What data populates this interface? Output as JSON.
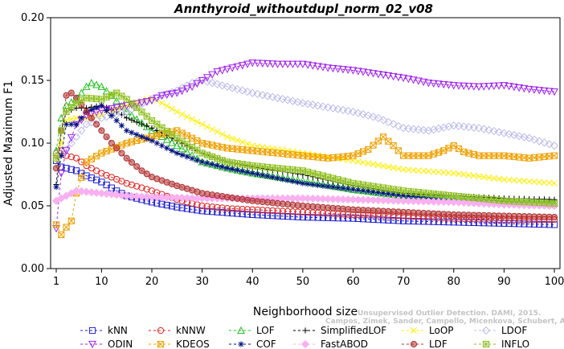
{
  "chart_data": {
    "type": "line",
    "title": "Annthyroid_withoutdupl_norm_02_v08",
    "xlabel": "Neighborhood size",
    "ylabel": "Adjusted Maximum F1",
    "xlim": [
      1,
      100
    ],
    "ylim": [
      0.0,
      0.2
    ],
    "xticks": [
      "1",
      "10",
      "20",
      "30",
      "40",
      "50",
      "60",
      "70",
      "80",
      "90",
      "100"
    ],
    "yticks": [
      "0.00",
      "0.05",
      "0.10",
      "0.15",
      "0.20"
    ],
    "grid": false,
    "legend_position": "bottom",
    "watermark": [
      "Campos, Zimek, Sander, Campello, Micenkova, Schubert, Assent, Houle",
      "Unsupervised Outlier Detection. DAMI, 2015."
    ],
    "series": [
      {
        "name": "kNN",
        "color": "#2020d0",
        "marker": "square",
        "points": [
          [
            1,
            0.086
          ],
          [
            2,
            0.081
          ],
          [
            3,
            0.08
          ],
          [
            5,
            0.078
          ],
          [
            7,
            0.074
          ],
          [
            10,
            0.069
          ],
          [
            13,
            0.062
          ],
          [
            15,
            0.058
          ],
          [
            20,
            0.053
          ],
          [
            25,
            0.049
          ],
          [
            30,
            0.046
          ],
          [
            40,
            0.043
          ],
          [
            50,
            0.041
          ],
          [
            60,
            0.04
          ],
          [
            70,
            0.038
          ],
          [
            80,
            0.037
          ],
          [
            90,
            0.036
          ],
          [
            100,
            0.035
          ]
        ]
      },
      {
        "name": "kNNW",
        "color": "#e02020",
        "marker": "circle",
        "points": [
          [
            1,
            0.092
          ],
          [
            2,
            0.094
          ],
          [
            3,
            0.09
          ],
          [
            5,
            0.088
          ],
          [
            7,
            0.082
          ],
          [
            10,
            0.076
          ],
          [
            15,
            0.068
          ],
          [
            20,
            0.062
          ],
          [
            25,
            0.055
          ],
          [
            30,
            0.05
          ],
          [
            35,
            0.048
          ],
          [
            40,
            0.047
          ],
          [
            50,
            0.045
          ],
          [
            60,
            0.043
          ],
          [
            70,
            0.042
          ],
          [
            80,
            0.04
          ],
          [
            90,
            0.039
          ],
          [
            100,
            0.039
          ]
        ]
      },
      {
        "name": "LOF",
        "color": "#20c020",
        "marker": "triangle-up",
        "points": [
          [
            1,
            0.094
          ],
          [
            2,
            0.12
          ],
          [
            3,
            0.13
          ],
          [
            5,
            0.135
          ],
          [
            7,
            0.145
          ],
          [
            8,
            0.148
          ],
          [
            10,
            0.145
          ],
          [
            12,
            0.138
          ],
          [
            15,
            0.125
          ],
          [
            20,
            0.11
          ],
          [
            25,
            0.098
          ],
          [
            30,
            0.085
          ],
          [
            35,
            0.08
          ],
          [
            40,
            0.076
          ],
          [
            50,
            0.07
          ],
          [
            60,
            0.063
          ],
          [
            70,
            0.058
          ],
          [
            80,
            0.056
          ],
          [
            90,
            0.053
          ],
          [
            100,
            0.052
          ]
        ]
      },
      {
        "name": "SimplifiedLOF",
        "color": "#000000",
        "marker": "plus",
        "points": [
          [
            1,
            0.067
          ],
          [
            2,
            0.11
          ],
          [
            3,
            0.125
          ],
          [
            5,
            0.128
          ],
          [
            7,
            0.128
          ],
          [
            10,
            0.13
          ],
          [
            13,
            0.125
          ],
          [
            15,
            0.12
          ],
          [
            20,
            0.112
          ],
          [
            25,
            0.102
          ],
          [
            30,
            0.092
          ],
          [
            35,
            0.085
          ],
          [
            40,
            0.081
          ],
          [
            50,
            0.075
          ],
          [
            60,
            0.066
          ],
          [
            70,
            0.06
          ],
          [
            80,
            0.058
          ],
          [
            90,
            0.056
          ],
          [
            100,
            0.055
          ]
        ]
      },
      {
        "name": "LoOP",
        "color": "#ffee00",
        "marker": "cross",
        "points": [
          [
            1,
            0.09
          ],
          [
            2,
            0.1
          ],
          [
            3,
            0.118
          ],
          [
            5,
            0.12
          ],
          [
            7,
            0.12
          ],
          [
            10,
            0.122
          ],
          [
            13,
            0.128
          ],
          [
            15,
            0.13
          ],
          [
            20,
            0.136
          ],
          [
            22,
            0.132
          ],
          [
            25,
            0.125
          ],
          [
            30,
            0.115
          ],
          [
            35,
            0.105
          ],
          [
            40,
            0.098
          ],
          [
            50,
            0.092
          ],
          [
            60,
            0.086
          ],
          [
            70,
            0.079
          ],
          [
            80,
            0.076
          ],
          [
            90,
            0.071
          ],
          [
            100,
            0.068
          ]
        ]
      },
      {
        "name": "LDOF",
        "color": "#bcbcec",
        "marker": "diamond",
        "points": [
          [
            1,
            0.09
          ],
          [
            2,
            0.092
          ],
          [
            3,
            0.095
          ],
          [
            5,
            0.105
          ],
          [
            7,
            0.115
          ],
          [
            10,
            0.12
          ],
          [
            15,
            0.125
          ],
          [
            20,
            0.135
          ],
          [
            25,
            0.142
          ],
          [
            28,
            0.148
          ],
          [
            30,
            0.15
          ],
          [
            35,
            0.145
          ],
          [
            40,
            0.14
          ],
          [
            45,
            0.136
          ],
          [
            50,
            0.132
          ],
          [
            60,
            0.125
          ],
          [
            65,
            0.12
          ],
          [
            70,
            0.112
          ],
          [
            75,
            0.11
          ],
          [
            80,
            0.114
          ],
          [
            85,
            0.112
          ],
          [
            90,
            0.108
          ],
          [
            95,
            0.104
          ],
          [
            100,
            0.098
          ]
        ]
      },
      {
        "name": "ODIN",
        "color": "#a020f0",
        "marker": "triangle-down",
        "points": [
          [
            1,
            0.032
          ],
          [
            2,
            0.076
          ],
          [
            3,
            0.094
          ],
          [
            5,
            0.115
          ],
          [
            7,
            0.122
          ],
          [
            10,
            0.126
          ],
          [
            15,
            0.13
          ],
          [
            20,
            0.134
          ],
          [
            22,
            0.138
          ],
          [
            25,
            0.14
          ],
          [
            28,
            0.145
          ],
          [
            30,
            0.15
          ],
          [
            33,
            0.157
          ],
          [
            36,
            0.16
          ],
          [
            40,
            0.164
          ],
          [
            45,
            0.163
          ],
          [
            50,
            0.163
          ],
          [
            55,
            0.16
          ],
          [
            60,
            0.158
          ],
          [
            65,
            0.155
          ],
          [
            70,
            0.152
          ],
          [
            75,
            0.148
          ],
          [
            80,
            0.146
          ],
          [
            85,
            0.145
          ],
          [
            90,
            0.146
          ],
          [
            95,
            0.143
          ],
          [
            100,
            0.141
          ]
        ]
      },
      {
        "name": "KDEOS",
        "color": "#f0a000",
        "marker": "square-x",
        "points": [
          [
            1,
            0.035
          ],
          [
            2,
            0.027
          ],
          [
            3,
            0.033
          ],
          [
            4,
            0.038
          ],
          [
            5,
            0.06
          ],
          [
            7,
            0.085
          ],
          [
            10,
            0.092
          ],
          [
            15,
            0.1
          ],
          [
            20,
            0.105
          ],
          [
            25,
            0.11
          ],
          [
            30,
            0.1
          ],
          [
            35,
            0.096
          ],
          [
            40,
            0.094
          ],
          [
            45,
            0.092
          ],
          [
            50,
            0.09
          ],
          [
            55,
            0.088
          ],
          [
            60,
            0.09
          ],
          [
            63,
            0.095
          ],
          [
            66,
            0.105
          ],
          [
            68,
            0.098
          ],
          [
            70,
            0.09
          ],
          [
            75,
            0.09
          ],
          [
            78,
            0.094
          ],
          [
            80,
            0.098
          ],
          [
            82,
            0.093
          ],
          [
            85,
            0.09
          ],
          [
            90,
            0.09
          ],
          [
            95,
            0.088
          ],
          [
            100,
            0.09
          ]
        ]
      },
      {
        "name": "COF",
        "color": "#001080",
        "marker": "star",
        "points": [
          [
            1,
            0.065
          ],
          [
            2,
            0.09
          ],
          [
            3,
            0.115
          ],
          [
            5,
            0.115
          ],
          [
            7,
            0.125
          ],
          [
            10,
            0.13
          ],
          [
            13,
            0.118
          ],
          [
            15,
            0.11
          ],
          [
            20,
            0.102
          ],
          [
            25,
            0.092
          ],
          [
            30,
            0.085
          ],
          [
            35,
            0.08
          ],
          [
            40,
            0.076
          ],
          [
            50,
            0.068
          ],
          [
            60,
            0.063
          ],
          [
            70,
            0.058
          ],
          [
            80,
            0.054
          ],
          [
            90,
            0.052
          ],
          [
            100,
            0.05
          ]
        ]
      },
      {
        "name": "FastABOD",
        "color": "#f8b0f0",
        "marker": "diamond-filled",
        "points": [
          [
            1,
            0.054
          ],
          [
            2,
            0.056
          ],
          [
            3,
            0.058
          ],
          [
            5,
            0.062
          ],
          [
            10,
            0.06
          ],
          [
            15,
            0.058
          ],
          [
            20,
            0.057
          ],
          [
            30,
            0.056
          ],
          [
            40,
            0.056
          ],
          [
            50,
            0.056
          ],
          [
            60,
            0.055
          ],
          [
            70,
            0.054
          ],
          [
            80,
            0.053
          ],
          [
            90,
            0.051
          ],
          [
            100,
            0.05
          ]
        ]
      },
      {
        "name": "LDF",
        "color": "#b03030",
        "marker": "circle-filled",
        "points": [
          [
            1,
            0.08
          ],
          [
            2,
            0.11
          ],
          [
            3,
            0.138
          ],
          [
            4,
            0.14
          ],
          [
            5,
            0.136
          ],
          [
            7,
            0.125
          ],
          [
            10,
            0.11
          ],
          [
            12,
            0.1
          ],
          [
            15,
            0.088
          ],
          [
            18,
            0.078
          ],
          [
            20,
            0.073
          ],
          [
            25,
            0.066
          ],
          [
            30,
            0.06
          ],
          [
            40,
            0.054
          ],
          [
            50,
            0.05
          ],
          [
            60,
            0.047
          ],
          [
            70,
            0.045
          ],
          [
            80,
            0.043
          ],
          [
            90,
            0.042
          ],
          [
            100,
            0.041
          ]
        ]
      },
      {
        "name": "INFLO",
        "color": "#90c020",
        "marker": "square-star",
        "points": [
          [
            1,
            0.088
          ],
          [
            2,
            0.11
          ],
          [
            3,
            0.125
          ],
          [
            5,
            0.132
          ],
          [
            7,
            0.136
          ],
          [
            10,
            0.135
          ],
          [
            13,
            0.14
          ],
          [
            15,
            0.135
          ],
          [
            20,
            0.118
          ],
          [
            25,
            0.104
          ],
          [
            30,
            0.092
          ],
          [
            35,
            0.085
          ],
          [
            40,
            0.082
          ],
          [
            50,
            0.078
          ],
          [
            60,
            0.068
          ],
          [
            70,
            0.062
          ],
          [
            80,
            0.058
          ],
          [
            90,
            0.054
          ],
          [
            100,
            0.052
          ]
        ]
      }
    ]
  }
}
